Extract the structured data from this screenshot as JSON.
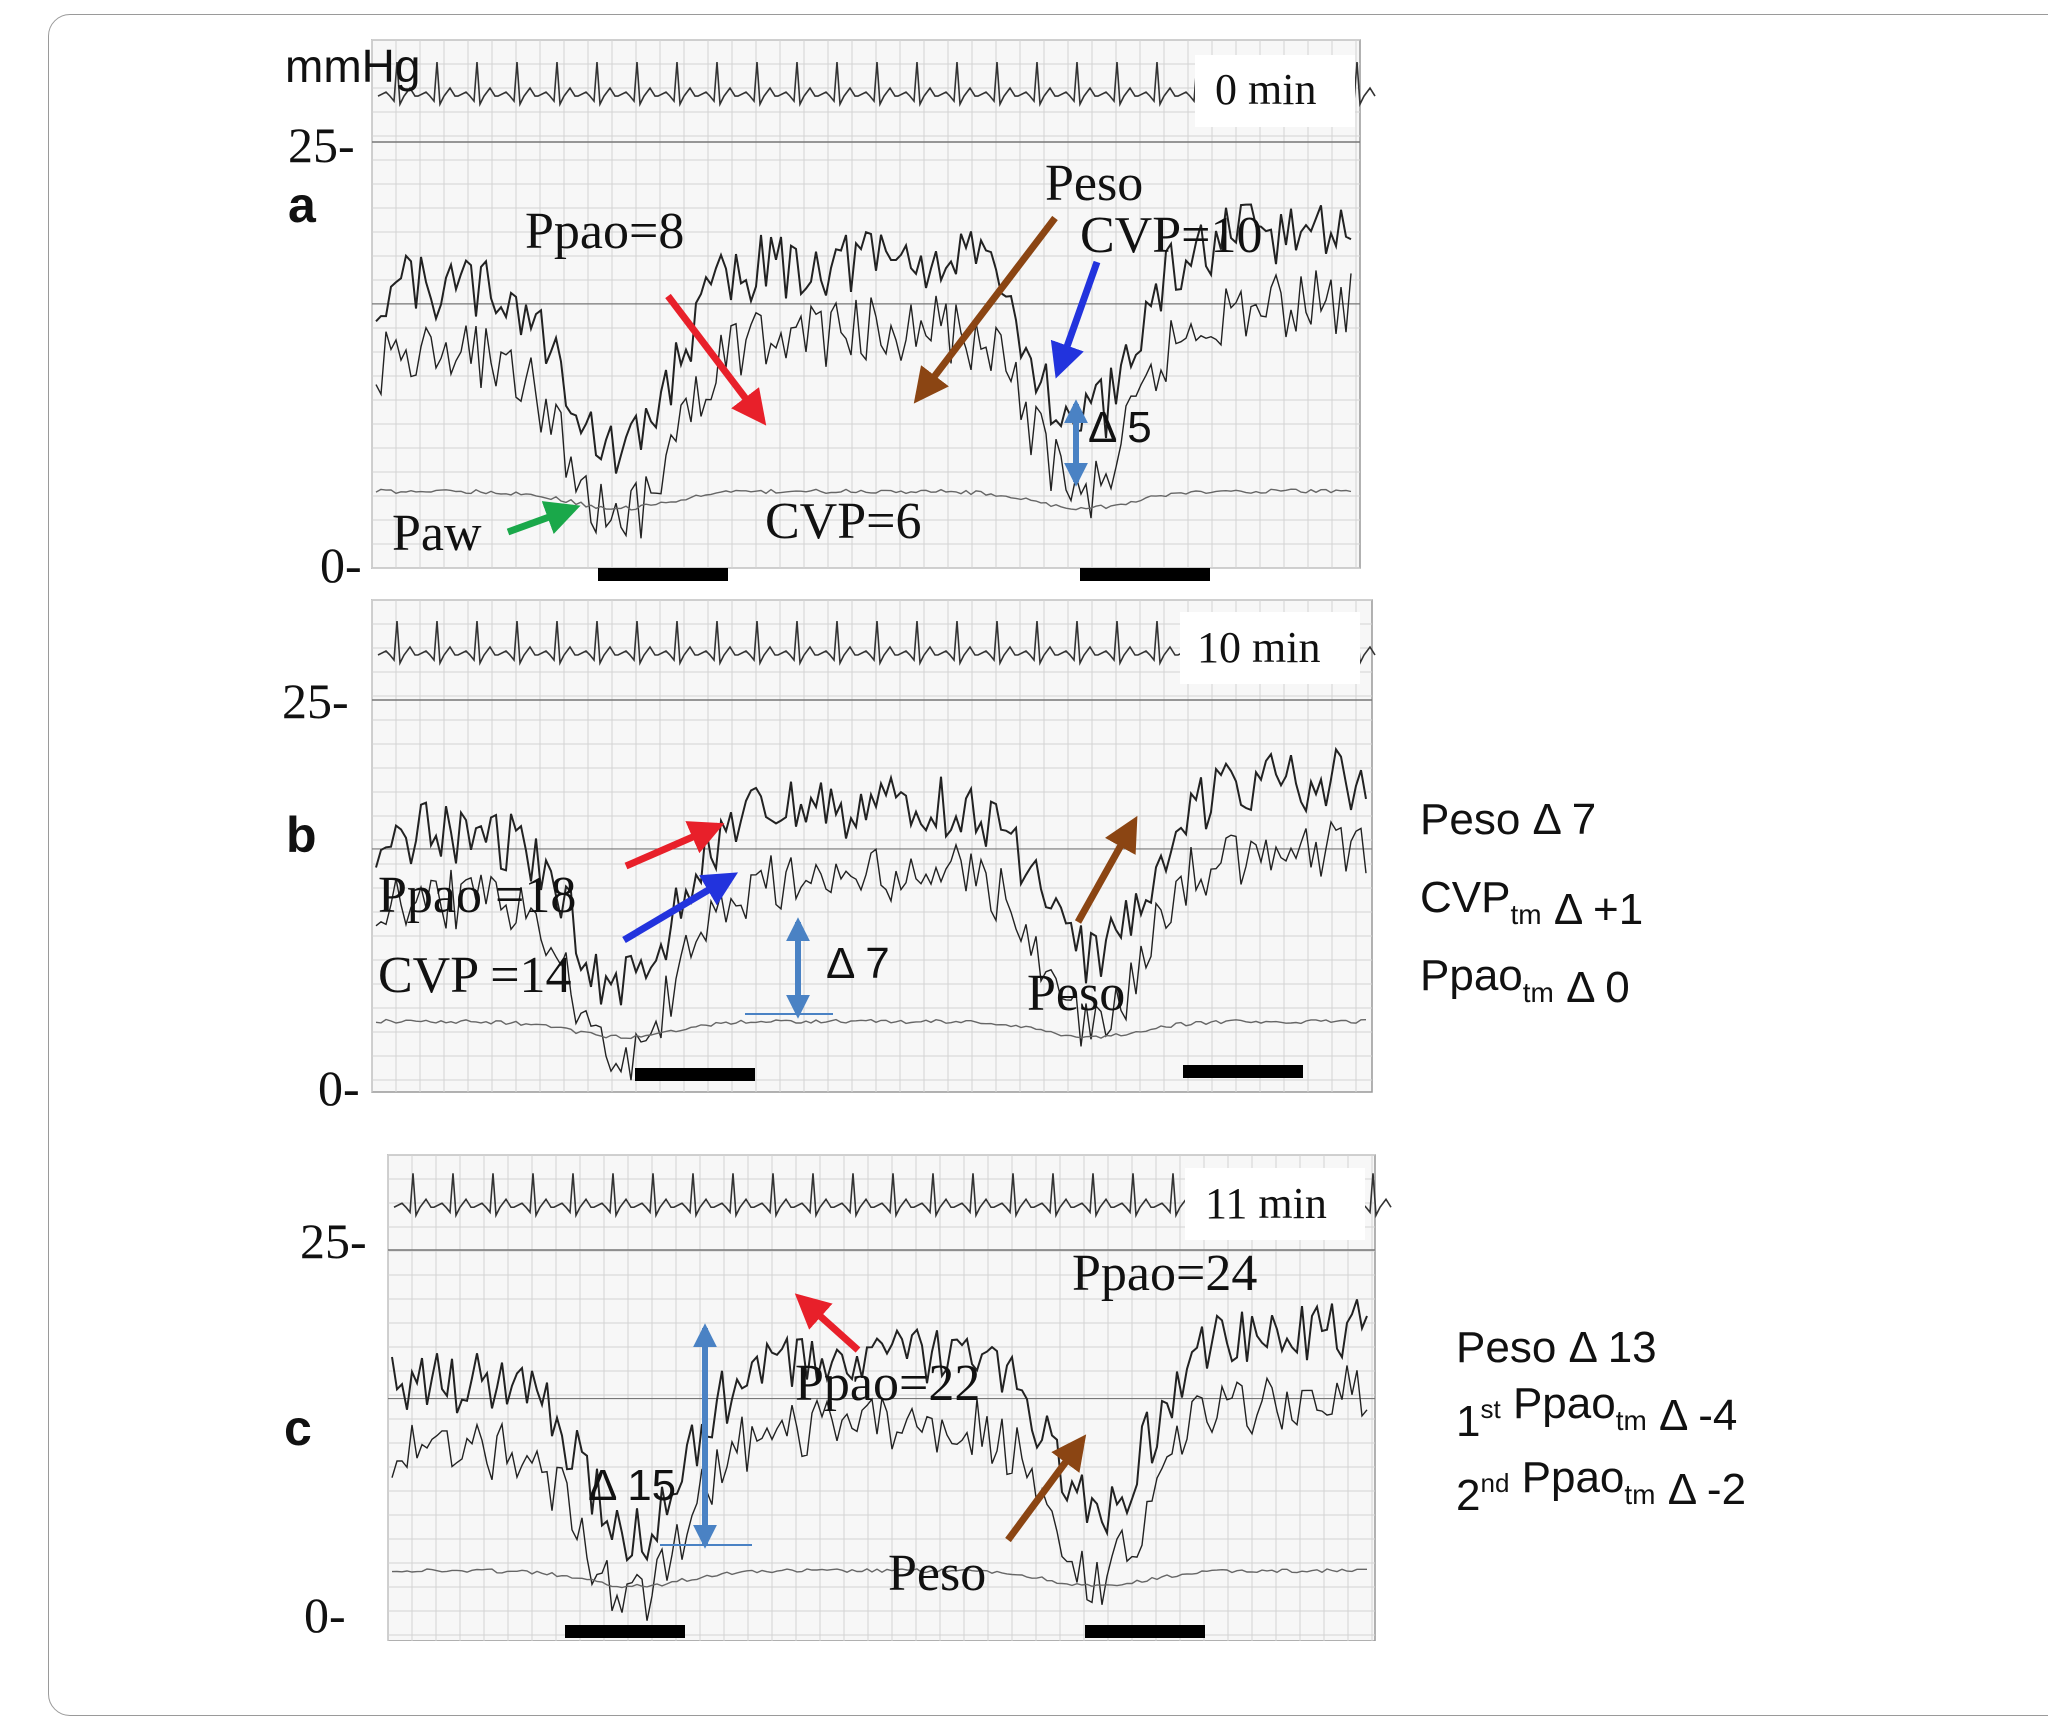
{
  "unit_label": "mmHg",
  "panels": [
    {
      "letter": "a",
      "time": "0 min",
      "y_top_label": "25-",
      "y_bottom_label": "0-",
      "labels": {
        "ppao": "Ppao=8",
        "peso": "Peso",
        "cvp_high": "CVP=10",
        "delta": "Δ 5",
        "paw": "Paw",
        "cvp_low": "CVP=6"
      }
    },
    {
      "letter": "b",
      "time": "10 min",
      "y_top_label": "25-",
      "y_bottom_label": "0-",
      "labels": {
        "ppao": "Ppao =18",
        "cvp": "CVP =14",
        "delta": "Δ 7",
        "peso": "Peso"
      },
      "side_notes": [
        {
          "main": "Peso Δ 7",
          "pre": "",
          "sup": "",
          "base": "",
          "sub": "",
          "post": ""
        },
        {
          "main": "",
          "pre": "",
          "sup": "",
          "base": "CVP",
          "sub": "tm",
          "post": " Δ +1"
        },
        {
          "main": "",
          "pre": "",
          "sup": "",
          "base": "Ppao",
          "sub": "tm",
          "post": " Δ 0"
        }
      ]
    },
    {
      "letter": "c",
      "time": "11 min",
      "y_top_label": "25-",
      "y_bottom_label": "0-",
      "labels": {
        "ppao_high": "Ppao=24",
        "ppao_low": "Ppao=22",
        "delta": "Δ 15",
        "peso": "Peso"
      },
      "side_notes": [
        {
          "main": "Peso Δ 13",
          "pre": "",
          "sup": "",
          "base": "",
          "sub": "",
          "post": ""
        },
        {
          "main": "",
          "pre": "1",
          "sup": "st",
          "base": " Ppao",
          "sub": "tm",
          "post": "  Δ -4"
        },
        {
          "main": "",
          "pre": "2",
          "sup": "nd",
          "base": " Ppao",
          "sub": "tm",
          "post": "  Δ -2"
        }
      ]
    }
  ],
  "colors": {
    "red_arrow": "#e8202a",
    "brown_arrow": "#8b4513",
    "blue_arrow": "#2233dd",
    "green_arrow": "#1aa84a",
    "delta_arrow": "#4a82c4",
    "trace": "#222222",
    "grid": "#c8c8c8",
    "bar": "#000000"
  }
}
